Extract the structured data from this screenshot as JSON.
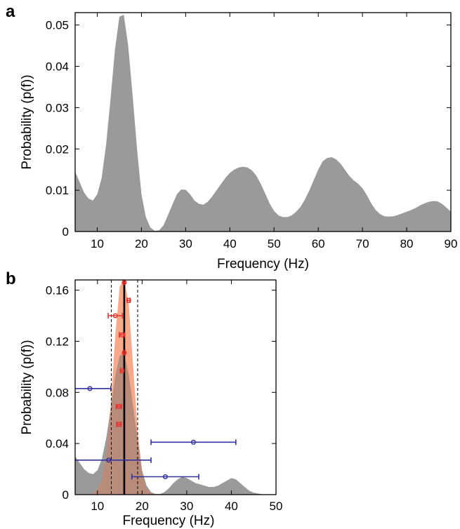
{
  "chart_data": [
    {
      "panel_label": "a",
      "type": "area",
      "xlabel": "Frequency (Hz)",
      "ylabel": "Probability (p(f))",
      "xlim": [
        5,
        90
      ],
      "ylim": [
        0,
        0.053
      ],
      "xticks": [
        "10",
        "20",
        "30",
        "40",
        "50",
        "60",
        "70",
        "80",
        "90"
      ],
      "yticks": [
        "0",
        "0.01",
        "0.02",
        "0.03",
        "0.04",
        "0.05"
      ],
      "fill_color": "#999a99",
      "series": [
        {
          "x": [
            5,
            6,
            7,
            8,
            9,
            10,
            11,
            12,
            13,
            14,
            15,
            16,
            17,
            18,
            19,
            20,
            21,
            22,
            23,
            24,
            25,
            26,
            27,
            28,
            29,
            30,
            31,
            32,
            33,
            34,
            35,
            36,
            37,
            38,
            39,
            40,
            41,
            42,
            43,
            44,
            45,
            46,
            47,
            48,
            49,
            50,
            51,
            52,
            53,
            54,
            55,
            56,
            57,
            58,
            59,
            60,
            61,
            62,
            63,
            64,
            65,
            66,
            67,
            68,
            69,
            70,
            71,
            72,
            73,
            74,
            75,
            76,
            77,
            78,
            79,
            80,
            81,
            82,
            83,
            84,
            85,
            86,
            87,
            88,
            89,
            90
          ],
          "values": [
            0.0145,
            0.012,
            0.0095,
            0.008,
            0.0075,
            0.009,
            0.013,
            0.021,
            0.032,
            0.044,
            0.052,
            0.0525,
            0.045,
            0.033,
            0.02,
            0.009,
            0.0035,
            0.001,
            0.0002,
            0.0003,
            0.0015,
            0.004,
            0.0065,
            0.009,
            0.0102,
            0.0101,
            0.009,
            0.0075,
            0.0067,
            0.0065,
            0.0072,
            0.0085,
            0.01,
            0.0115,
            0.013,
            0.0142,
            0.015,
            0.0155,
            0.0157,
            0.0155,
            0.0148,
            0.0135,
            0.0115,
            0.0092,
            0.0068,
            0.005,
            0.0039,
            0.0035,
            0.0035,
            0.0039,
            0.0048,
            0.006,
            0.0078,
            0.01,
            0.0125,
            0.015,
            0.017,
            0.0178,
            0.018,
            0.0175,
            0.0165,
            0.015,
            0.0135,
            0.0124,
            0.0116,
            0.0105,
            0.0088,
            0.0068,
            0.0052,
            0.0042,
            0.0037,
            0.0036,
            0.0037,
            0.004,
            0.0044,
            0.0048,
            0.0052,
            0.0057,
            0.0063,
            0.0068,
            0.0072,
            0.0074,
            0.0073,
            0.0067,
            0.0058,
            0.0048
          ]
        }
      ]
    },
    {
      "panel_label": "b",
      "type": "area",
      "xlabel": "Frequency (Hz)",
      "ylabel": "Probability (p(f))",
      "xlim": [
        5,
        50
      ],
      "ylim": [
        0,
        0.168
      ],
      "xticks": [
        "10",
        "20",
        "30",
        "40",
        "50"
      ],
      "yticks": [
        "0",
        "0.04",
        "0.08",
        "0.12",
        "0.16"
      ],
      "gray_color": "#999a99",
      "orange_color": "#f7a98a",
      "overlap_color": "#b98b7a",
      "gray_series": {
        "x": [
          5,
          6,
          7,
          8,
          9,
          10,
          11,
          12,
          13,
          14,
          15,
          16,
          17,
          18,
          19,
          20,
          21,
          22,
          23,
          24,
          25,
          26,
          27,
          28,
          29,
          30,
          31,
          32,
          33,
          34,
          35,
          36,
          37,
          38,
          39,
          40,
          41,
          42,
          43,
          44,
          45,
          46,
          47,
          48,
          49,
          50
        ],
        "values": [
          0.03,
          0.025,
          0.02,
          0.017,
          0.016,
          0.019,
          0.028,
          0.045,
          0.068,
          0.093,
          0.109,
          0.11,
          0.094,
          0.069,
          0.042,
          0.019,
          0.007,
          0.002,
          0.0005,
          0.0005,
          0.002,
          0.005,
          0.009,
          0.012,
          0.014,
          0.013,
          0.011,
          0.009,
          0.008,
          0.007,
          0.006,
          0.006,
          0.007,
          0.009,
          0.011,
          0.013,
          0.012,
          0.009,
          0.006,
          0.003,
          0.0015,
          0.0008,
          0.0003,
          0,
          0,
          0
        ]
      },
      "orange_series": {
        "x": [
          8,
          9,
          10,
          11,
          12,
          13,
          14,
          15,
          16,
          17,
          18,
          19,
          20,
          21,
          22,
          23
        ],
        "values": [
          0,
          0.001,
          0.004,
          0.012,
          0.032,
          0.07,
          0.125,
          0.163,
          0.168,
          0.15,
          0.1,
          0.05,
          0.018,
          0.005,
          0.0012,
          0
        ]
      },
      "mean_line_x": 16,
      "dashed_lines_x": [
        13.1,
        19.0
      ],
      "red_points": [
        {
          "x": 16.0,
          "y": 0.166,
          "xerr": 0.2
        },
        {
          "x": 17.0,
          "y": 0.152,
          "xerr": 0.3
        },
        {
          "x": 14.0,
          "y": 0.14,
          "xerr": 1.6
        },
        {
          "x": 15.5,
          "y": 0.125,
          "xerr": 0.6
        },
        {
          "x": 16.0,
          "y": 0.111,
          "xerr": 0.2
        },
        {
          "x": 15.5,
          "y": 0.097,
          "xerr": 0.3
        },
        {
          "x": 14.8,
          "y": 0.069,
          "xerr": 0.6
        },
        {
          "x": 14.8,
          "y": 0.055,
          "xerr": 0.5
        }
      ],
      "blue_points": [
        {
          "x": 8.3,
          "y": 0.083,
          "xerr_low": 4.7,
          "xerr_high": 4.7
        },
        {
          "x": 31.5,
          "y": 0.041,
          "xerr_low": 9.5,
          "xerr_high": 9.5
        },
        {
          "x": 12.5,
          "y": 0.027,
          "xerr_low": 8.5,
          "xerr_high": 9.5
        },
        {
          "x": 25.2,
          "y": 0.014,
          "xerr_low": 7.5,
          "xerr_high": 7.5
        }
      ],
      "red_color": "#e8322c",
      "blue_color": "#3333a0"
    }
  ]
}
